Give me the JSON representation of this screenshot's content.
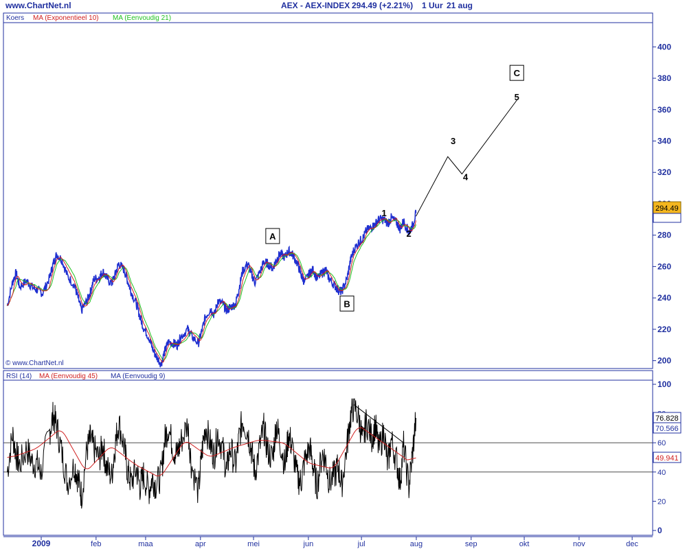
{
  "header": {
    "site": "www.ChartNet.nl",
    "title": "AEX - AEX-INDEX",
    "quote": "294.49 (+2.21%)",
    "interval": "1 Uur",
    "date": "21 aug"
  },
  "price_panel": {
    "legend": [
      "Koers",
      "MA (Exponentieel 10)",
      "MA (Eenvoudig 21)"
    ],
    "copyright": "© www.ChartNet.nl",
    "last_price_tag": "294.49"
  },
  "rsi_panel": {
    "legend": [
      "RSI (14)",
      "MA (Eenvoudig 45)",
      "MA (Eenvoudig 9)"
    ],
    "tags": [
      "76.828",
      "70.566",
      "49.941"
    ]
  },
  "colors": {
    "price": "#1f2fd0",
    "ema10": "#d02020",
    "sma21": "#20c020",
    "rsi": "#000000",
    "rsi_ma": "#d02020",
    "axis_text": "#1f2f9f",
    "frame": "#1f2f9f",
    "tag_bg": "#f4b61f"
  },
  "chart_data": [
    {
      "type": "line",
      "panel": "price",
      "x_months": [
        "2009",
        "feb",
        "maa",
        "apr",
        "mei",
        "jun",
        "jul",
        "aug",
        "sep",
        "okt",
        "nov",
        "dec"
      ],
      "ylim": [
        195,
        415
      ],
      "yticks": [
        200,
        220,
        240,
        260,
        280,
        300,
        320,
        340,
        360,
        380,
        400
      ],
      "grid": false,
      "series_points": [
        [
          "2009-01-02",
          235
        ],
        [
          "2009-01-05",
          250
        ],
        [
          "2009-01-07",
          256
        ],
        [
          "2009-01-09",
          247
        ],
        [
          "2009-01-13",
          251
        ],
        [
          "2009-01-16",
          247
        ],
        [
          "2009-01-19",
          245
        ],
        [
          "2009-01-22",
          243
        ],
        [
          "2009-01-26",
          253
        ],
        [
          "2009-01-28",
          262
        ],
        [
          "2009-01-30",
          268
        ],
        [
          "2009-02-02",
          264
        ],
        [
          "2009-02-05",
          254
        ],
        [
          "2009-02-09",
          248
        ],
        [
          "2009-02-11",
          240
        ],
        [
          "2009-02-13",
          232
        ],
        [
          "2009-02-16",
          238
        ],
        [
          "2009-02-18",
          244
        ],
        [
          "2009-02-20",
          252
        ],
        [
          "2009-02-23",
          253
        ],
        [
          "2009-02-25",
          257
        ],
        [
          "2009-02-27",
          253
        ],
        [
          "2009-03-02",
          249
        ],
        [
          "2009-03-04",
          255
        ],
        [
          "2009-03-06",
          262
        ],
        [
          "2009-03-09",
          258
        ],
        [
          "2009-03-11",
          251
        ],
        [
          "2009-03-13",
          244
        ],
        [
          "2009-03-16",
          236
        ],
        [
          "2009-03-18",
          228
        ],
        [
          "2009-03-20",
          221
        ],
        [
          "2009-03-23",
          215
        ],
        [
          "2009-03-25",
          208
        ],
        [
          "2009-03-27",
          203
        ],
        [
          "2009-03-30",
          198
        ],
        [
          "2009-04-01",
          206
        ],
        [
          "2009-04-03",
          212
        ],
        [
          "2009-04-06",
          211
        ],
        [
          "2009-04-08",
          210
        ],
        [
          "2009-04-10",
          215
        ],
        [
          "2009-04-14",
          220
        ],
        [
          "2009-04-16",
          216
        ],
        [
          "2009-04-20",
          211
        ],
        [
          "2009-04-22",
          219
        ],
        [
          "2009-04-24",
          228
        ],
        [
          "2009-04-27",
          233
        ],
        [
          "2009-04-29",
          229
        ],
        [
          "2009-05-01",
          238
        ],
        [
          "2009-05-04",
          236
        ],
        [
          "2009-05-06",
          232
        ],
        [
          "2009-05-08",
          234
        ],
        [
          "2009-05-11",
          236
        ],
        [
          "2009-05-13",
          246
        ],
        [
          "2009-05-15",
          257
        ],
        [
          "2009-05-18",
          262
        ],
        [
          "2009-05-20",
          255
        ],
        [
          "2009-05-22",
          250
        ],
        [
          "2009-05-25",
          257
        ],
        [
          "2009-05-27",
          263
        ],
        [
          "2009-05-29",
          262
        ],
        [
          "2009-06-01",
          259
        ],
        [
          "2009-06-03",
          264
        ],
        [
          "2009-06-05",
          268
        ],
        [
          "2009-06-08",
          266
        ],
        [
          "2009-06-10",
          270
        ],
        [
          "2009-06-12",
          268
        ],
        [
          "2009-06-15",
          262
        ],
        [
          "2009-06-17",
          255
        ],
        [
          "2009-06-19",
          250
        ],
        [
          "2009-06-22",
          256
        ],
        [
          "2009-06-24",
          258
        ],
        [
          "2009-06-26",
          252
        ],
        [
          "2009-06-29",
          256
        ],
        [
          "2009-07-01",
          258
        ],
        [
          "2009-07-03",
          252
        ],
        [
          "2009-07-06",
          248
        ],
        [
          "2009-07-08",
          245
        ],
        [
          "2009-07-10",
          244
        ],
        [
          "2009-07-13",
          252
        ],
        [
          "2009-07-15",
          264
        ],
        [
          "2009-07-17",
          271
        ],
        [
          "2009-07-20",
          276
        ],
        [
          "2009-07-22",
          278
        ],
        [
          "2009-07-24",
          283
        ],
        [
          "2009-07-27",
          285
        ],
        [
          "2009-07-29",
          287
        ],
        [
          "2009-07-31",
          290
        ],
        [
          "2009-08-03",
          290
        ],
        [
          "2009-08-05",
          287
        ],
        [
          "2009-08-07",
          291
        ],
        [
          "2009-08-10",
          288
        ],
        [
          "2009-08-12",
          284
        ],
        [
          "2009-08-14",
          289
        ],
        [
          "2009-08-17",
          282
        ],
        [
          "2009-08-19",
          286
        ],
        [
          "2009-08-21",
          294
        ]
      ]
    },
    {
      "type": "line",
      "panel": "rsi",
      "ylim": [
        0,
        100
      ],
      "yticks": [
        0,
        20,
        40,
        60,
        80,
        100
      ],
      "reference_lines": [
        40,
        60
      ],
      "rsi_points": [
        [
          "2009-01-02",
          40
        ],
        [
          "2009-01-05",
          66
        ],
        [
          "2009-01-07",
          52
        ],
        [
          "2009-01-09",
          45
        ],
        [
          "2009-01-13",
          56
        ],
        [
          "2009-01-16",
          47
        ],
        [
          "2009-01-19",
          45
        ],
        [
          "2009-01-21",
          40
        ],
        [
          "2009-01-26",
          68
        ],
        [
          "2009-01-28",
          79
        ],
        [
          "2009-01-30",
          71
        ],
        [
          "2009-02-02",
          52
        ],
        [
          "2009-02-05",
          33
        ],
        [
          "2009-02-09",
          45
        ],
        [
          "2009-02-11",
          35
        ],
        [
          "2009-02-13",
          24
        ],
        [
          "2009-02-16",
          55
        ],
        [
          "2009-02-18",
          63
        ],
        [
          "2009-02-20",
          56
        ],
        [
          "2009-02-23",
          49
        ],
        [
          "2009-02-25",
          59
        ],
        [
          "2009-02-27",
          43
        ],
        [
          "2009-03-02",
          37
        ],
        [
          "2009-03-04",
          59
        ],
        [
          "2009-03-06",
          74
        ],
        [
          "2009-03-09",
          58
        ],
        [
          "2009-03-11",
          40
        ],
        [
          "2009-03-13",
          33
        ],
        [
          "2009-03-16",
          42
        ],
        [
          "2009-03-18",
          30
        ],
        [
          "2009-03-20",
          38
        ],
        [
          "2009-03-23",
          27
        ],
        [
          "2009-03-25",
          36
        ],
        [
          "2009-03-27",
          31
        ],
        [
          "2009-03-30",
          38
        ],
        [
          "2009-04-01",
          62
        ],
        [
          "2009-04-03",
          71
        ],
        [
          "2009-04-06",
          55
        ],
        [
          "2009-04-08",
          52
        ],
        [
          "2009-04-10",
          60
        ],
        [
          "2009-04-14",
          73
        ],
        [
          "2009-04-16",
          46
        ],
        [
          "2009-04-20",
          26
        ],
        [
          "2009-04-22",
          53
        ],
        [
          "2009-04-24",
          72
        ],
        [
          "2009-04-27",
          58
        ],
        [
          "2009-04-29",
          51
        ],
        [
          "2009-05-01",
          67
        ],
        [
          "2009-05-04",
          54
        ],
        [
          "2009-05-06",
          40
        ],
        [
          "2009-05-08",
          57
        ],
        [
          "2009-05-11",
          44
        ],
        [
          "2009-05-13",
          63
        ],
        [
          "2009-05-15",
          76
        ],
        [
          "2009-05-18",
          67
        ],
        [
          "2009-05-20",
          55
        ],
        [
          "2009-05-22",
          40
        ],
        [
          "2009-05-25",
          59
        ],
        [
          "2009-05-27",
          70
        ],
        [
          "2009-05-29",
          55
        ],
        [
          "2009-06-01",
          49
        ],
        [
          "2009-06-03",
          73
        ],
        [
          "2009-06-05",
          62
        ],
        [
          "2009-06-08",
          44
        ],
        [
          "2009-06-10",
          66
        ],
        [
          "2009-06-12",
          57
        ],
        [
          "2009-06-15",
          36
        ],
        [
          "2009-06-17",
          33
        ],
        [
          "2009-06-19",
          47
        ],
        [
          "2009-06-22",
          57
        ],
        [
          "2009-06-24",
          43
        ],
        [
          "2009-06-26",
          30
        ],
        [
          "2009-06-29",
          53
        ],
        [
          "2009-07-01",
          48
        ],
        [
          "2009-07-03",
          33
        ],
        [
          "2009-07-06",
          38
        ],
        [
          "2009-07-08",
          44
        ],
        [
          "2009-07-10",
          31
        ],
        [
          "2009-07-13",
          58
        ],
        [
          "2009-07-15",
          78
        ],
        [
          "2009-07-17",
          86
        ],
        [
          "2009-07-20",
          75
        ],
        [
          "2009-07-22",
          60
        ],
        [
          "2009-07-24",
          75
        ],
        [
          "2009-07-27",
          63
        ],
        [
          "2009-07-29",
          72
        ],
        [
          "2009-07-31",
          55
        ],
        [
          "2009-08-03",
          68
        ],
        [
          "2009-08-05",
          44
        ],
        [
          "2009-08-07",
          62
        ],
        [
          "2009-08-10",
          48
        ],
        [
          "2009-08-12",
          33
        ],
        [
          "2009-08-14",
          58
        ],
        [
          "2009-08-17",
          30
        ],
        [
          "2009-08-19",
          52
        ],
        [
          "2009-08-21",
          77
        ]
      ],
      "rsi_ma_points": [
        [
          "2009-01-02",
          50
        ],
        [
          "2009-01-16",
          56
        ],
        [
          "2009-01-30",
          70
        ],
        [
          "2009-02-13",
          40
        ],
        [
          "2009-02-27",
          58
        ],
        [
          "2009-03-13",
          45
        ],
        [
          "2009-03-27",
          36
        ],
        [
          "2009-04-10",
          62
        ],
        [
          "2009-04-24",
          50
        ],
        [
          "2009-05-08",
          57
        ],
        [
          "2009-05-22",
          62
        ],
        [
          "2009-06-05",
          60
        ],
        [
          "2009-06-19",
          46
        ],
        [
          "2009-07-03",
          42
        ],
        [
          "2009-07-17",
          72
        ],
        [
          "2009-07-31",
          60
        ],
        [
          "2009-08-14",
          48
        ],
        [
          "2009-08-21",
          50
        ]
      ]
    }
  ],
  "annotations": {
    "waves": [
      {
        "label": "1",
        "date": "2009-08-03",
        "value": 292
      },
      {
        "label": "2",
        "date": "2009-08-17",
        "value": 279
      },
      {
        "label": "3",
        "date": "2009-09-11",
        "value": 338
      },
      {
        "label": "4",
        "date": "2009-09-18",
        "value": 315
      },
      {
        "label": "5",
        "date": "2009-10-17",
        "value": 366
      }
    ],
    "boxes": [
      {
        "label": "A",
        "date": "2009-06-01",
        "value": 279
      },
      {
        "label": "B",
        "date": "2009-07-13",
        "value": 236
      },
      {
        "label": "C",
        "date": "2009-10-17",
        "value": 383
      }
    ],
    "projection": [
      [
        "2009-08-21",
        292
      ],
      [
        "2009-09-08",
        330
      ],
      [
        "2009-09-16",
        319
      ],
      [
        "2009-10-17",
        366
      ]
    ],
    "rsi_trendline": [
      [
        "2009-07-17",
        86
      ],
      [
        "2009-08-14",
        60
      ]
    ]
  }
}
